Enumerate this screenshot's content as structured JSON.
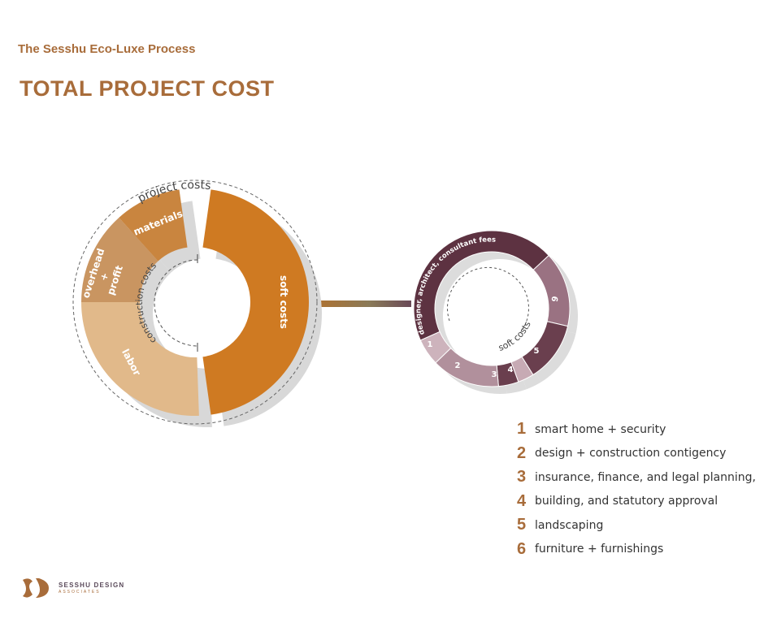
{
  "header": {
    "subtitle": "The Sesshu Eco-Luxe Process",
    "title": "TOTAL PROJECT COST"
  },
  "main_ring": {
    "outer_label": "project costs",
    "inner_label": "construction costs",
    "segments": [
      {
        "id": "soft",
        "label": "soft costs",
        "color": "#cf7a22"
      },
      {
        "id": "labor",
        "label": "labor",
        "color": "#e1b98a"
      },
      {
        "id": "overhead",
        "label": "overhead\n+\nprofit",
        "color": "#c99561"
      },
      {
        "id": "materials",
        "label": "materials",
        "color": "#c9853f"
      }
    ]
  },
  "soft_ring": {
    "inner_label": "soft costs",
    "segments": [
      {
        "id": "fees",
        "label": "designer, architect, consultant fees",
        "color": "#5d3241"
      },
      {
        "id": "s6",
        "label": "6",
        "color": "#9a7282"
      },
      {
        "id": "s5",
        "label": "5",
        "color": "#6a3f4e"
      },
      {
        "id": "s4",
        "label": "4",
        "color": "#c7aab4"
      },
      {
        "id": "s3",
        "label": "3",
        "color": "#6a3f4e"
      },
      {
        "id": "s2",
        "label": "2",
        "color": "#b1909c"
      },
      {
        "id": "s1",
        "label": "1",
        "color": "#cdb3bc"
      }
    ]
  },
  "legend": [
    {
      "num": "1",
      "label": "smart home + security"
    },
    {
      "num": "2",
      "label": "design + construction contigency"
    },
    {
      "num": "3",
      "label": "insurance, finance, and legal planning,"
    },
    {
      "num": "4",
      "label": "building, and statutory approval"
    },
    {
      "num": "5",
      "label": "landscaping"
    },
    {
      "num": "6",
      "label": "furniture + furnishings"
    }
  ],
  "logo": {
    "name": "SESSHU DESIGN",
    "sub": "ASSOCIATES",
    "accent": "#a86c3a"
  }
}
